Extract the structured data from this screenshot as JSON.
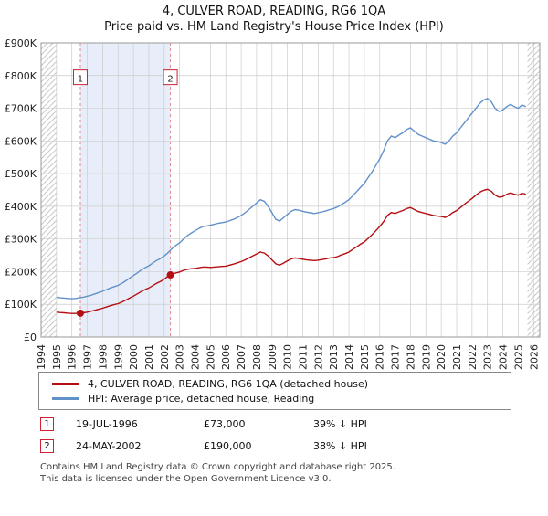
{
  "title_line1": "4, CULVER ROAD, READING, RG6 1QA",
  "title_line2": "Price paid vs. HM Land Registry's House Price Index (HPI)",
  "chart_data": {
    "type": "line",
    "x_start": 1995.0,
    "x_step": 0.25,
    "x_axis": {
      "min": 1994,
      "max": 2026.4,
      "tick_years": [
        1994,
        1995,
        1996,
        1997,
        1998,
        1999,
        2000,
        2001,
        2002,
        2003,
        2004,
        2005,
        2006,
        2007,
        2008,
        2009,
        2010,
        2011,
        2012,
        2013,
        2014,
        2015,
        2016,
        2017,
        2018,
        2019,
        2020,
        2021,
        2022,
        2023,
        2024,
        2025,
        2026
      ]
    },
    "y_axis": {
      "min": 0,
      "max": 900,
      "tick_step": 100,
      "unit": "GBP thousands",
      "tick_labels": [
        "£0",
        "£100K",
        "£200K",
        "£300K",
        "£400K",
        "£500K",
        "£600K",
        "£700K",
        "£800K",
        "£900K"
      ]
    },
    "series": [
      {
        "name": "4, CULVER ROAD, READING, RG6 1QA (detached house)",
        "color": "#b50d12",
        "values": [
          76,
          75,
          74,
          73,
          72,
          72,
          73,
          74,
          76,
          79,
          82,
          85,
          88,
          92,
          96,
          99,
          102,
          107,
          113,
          119,
          125,
          132,
          139,
          145,
          150,
          157,
          164,
          170,
          177,
          186,
          193,
          196,
          199,
          204,
          207,
          209,
          210,
          212,
          214,
          214,
          213,
          214,
          215,
          216,
          217,
          220,
          223,
          227,
          231,
          236,
          242,
          248,
          254,
          260,
          257,
          248,
          236,
          224,
          220,
          226,
          233,
          239,
          242,
          240,
          238,
          236,
          235,
          234,
          235,
          237,
          239,
          242,
          243,
          246,
          251,
          255,
          260,
          268,
          276,
          284,
          291,
          302,
          313,
          325,
          338,
          353,
          372,
          381,
          378,
          383,
          387,
          393,
          396,
          390,
          384,
          381,
          378,
          375,
          372,
          370,
          369,
          366,
          372,
          381,
          387,
          396,
          406,
          415,
          424,
          434,
          443,
          449,
          452,
          446,
          434,
          428,
          430,
          437,
          441,
          437,
          434,
          440,
          437
        ]
      },
      {
        "name": "HPI: Average price, detached house, Reading",
        "color": "#6191c9",
        "values": [
          122,
          120,
          119,
          118,
          117,
          118,
          120,
          122,
          125,
          128,
          132,
          136,
          140,
          145,
          150,
          154,
          158,
          164,
          172,
          180,
          188,
          196,
          205,
          212,
          218,
          226,
          234,
          240,
          248,
          258,
          270,
          280,
          288,
          300,
          310,
          318,
          325,
          332,
          338,
          340,
          342,
          345,
          348,
          350,
          352,
          356,
          360,
          366,
          372,
          380,
          390,
          400,
          410,
          420,
          415,
          400,
          380,
          360,
          355,
          365,
          375,
          385,
          390,
          388,
          385,
          382,
          380,
          378,
          380,
          383,
          386,
          390,
          393,
          398,
          405,
          412,
          420,
          432,
          445,
          458,
          470,
          488,
          505,
          525,
          545,
          570,
          600,
          615,
          610,
          618,
          625,
          635,
          640,
          630,
          620,
          615,
          610,
          605,
          600,
          598,
          595,
          590,
          600,
          615,
          625,
          640,
          655,
          670,
          685,
          700,
          715,
          725,
          730,
          720,
          700,
          690,
          695,
          705,
          712,
          705,
          700,
          710,
          705
        ]
      }
    ],
    "colors": {
      "grid": "#cccccc",
      "shade": "#e8eef9",
      "sale_line": "#e08a8a",
      "hatch": "#c9c9c9",
      "border": "#999999"
    },
    "hatch_regions": [
      [
        1994,
        1995.0
      ],
      [
        2025.6,
        2026.4
      ]
    ],
    "shade_region": [
      1996.55,
      2002.4
    ],
    "sales": [
      {
        "n": "1",
        "x": 1996.55,
        "y": 73
      },
      {
        "n": "2",
        "x": 2002.4,
        "y": 190
      }
    ]
  },
  "legend": {
    "items": [
      "4, CULVER ROAD, READING, RG6 1QA (detached house)",
      "HPI: Average price, detached house, Reading"
    ]
  },
  "transactions": [
    {
      "num": "1",
      "date": "19-JUL-1996",
      "price": "£73,000",
      "hpi": "39% ↓ HPI"
    },
    {
      "num": "2",
      "date": "24-MAY-2002",
      "price": "£190,000",
      "hpi": "38% ↓ HPI"
    }
  ],
  "footer_line1": "Contains HM Land Registry data © Crown copyright and database right 2025.",
  "footer_line2": "This data is licensed under the Open Government Licence v3.0."
}
